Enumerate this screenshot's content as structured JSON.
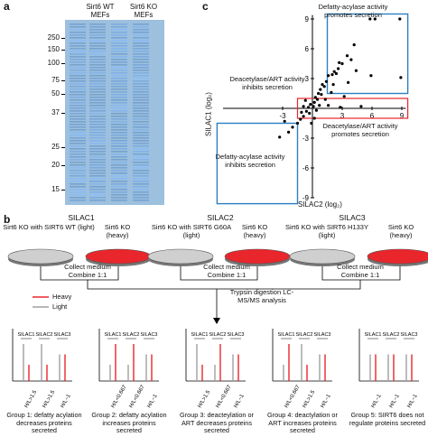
{
  "panel_a": {
    "letter": "a",
    "lane_wt": "Sirt6 WT MEFs",
    "lane_ko": "Sirt6 KO MEFs",
    "markers": [
      "250",
      "150",
      "100",
      "75",
      "50",
      "37",
      "25",
      "20",
      "15"
    ]
  },
  "panel_c": {
    "letter": "c",
    "top_label": "Defatty-acylase activity promotes secretion",
    "left_label": "Deacetylase/ART activity inhibits secretion",
    "right_label": "Deacetylase/ART activity promotes secretion",
    "bottom_label": "Defatty-acylase activity inhibits secretion",
    "ylabel": "SILAC1 (log₂)",
    "xlabel": "SILAC2 (log₂)",
    "yticks": [
      "9",
      "6",
      "3",
      "-3",
      "-6",
      "-9"
    ],
    "xticks": [
      "-3",
      "3",
      "6",
      "9"
    ]
  },
  "chart_data": {
    "type": "scatter",
    "xlabel": "SILAC2 (log₂)",
    "ylabel": "SILAC1 (log₂)",
    "xlim": [
      -9,
      9
    ],
    "ylim": [
      -9,
      9
    ],
    "points": [
      [
        5.8,
        9.0
      ],
      [
        6.3,
        9.0
      ],
      [
        8.8,
        9.0
      ],
      [
        4.2,
        6.4
      ],
      [
        3.5,
        5.3
      ],
      [
        3.9,
        4.9
      ],
      [
        2.7,
        4.6
      ],
      [
        3.0,
        4.5
      ],
      [
        2.6,
        4.0
      ],
      [
        2.2,
        3.7
      ],
      [
        2.0,
        3.4
      ],
      [
        1.6,
        3.3
      ],
      [
        2.4,
        3.5
      ],
      [
        1.4,
        2.7
      ],
      [
        1.0,
        2.4
      ],
      [
        1.2,
        2.2
      ],
      [
        0.8,
        1.9
      ],
      [
        0.6,
        1.5
      ],
      [
        0.9,
        1.4
      ],
      [
        0.3,
        1.1
      ],
      [
        0.5,
        0.9
      ],
      [
        0.2,
        0.6
      ],
      [
        -0.2,
        0.4
      ],
      [
        0.1,
        0.2
      ],
      [
        -0.4,
        0.1
      ],
      [
        0.4,
        -0.2
      ],
      [
        -0.6,
        -0.3
      ],
      [
        -0.3,
        -0.5
      ],
      [
        0.7,
        0.3
      ],
      [
        -0.9,
        -0.8
      ],
      [
        -1.2,
        -1.1
      ],
      [
        -1.5,
        -1.5
      ],
      [
        -2.0,
        -1.9
      ],
      [
        -2.4,
        -2.4
      ],
      [
        -1.1,
        -0.4
      ],
      [
        -0.7,
        0.8
      ],
      [
        1.6,
        0.3
      ],
      [
        2.8,
        0.1
      ],
      [
        5.9,
        3.3
      ],
      [
        8.9,
        3.1
      ],
      [
        4.9,
        0.2
      ],
      [
        3.2,
        1.2
      ],
      [
        1.9,
        1.6
      ],
      [
        -3.3,
        -2.9
      ],
      [
        -2.8,
        -1.3
      ],
      [
        0.2,
        -1.0
      ],
      [
        -0.1,
        -1.5
      ],
      [
        -0.9,
        0.2
      ],
      [
        1.3,
        0.9
      ],
      [
        2.1,
        2.4
      ],
      [
        3.6,
        2.6
      ],
      [
        4.4,
        3.8
      ]
    ]
  },
  "panel_b": {
    "letter": "b",
    "silac1": {
      "title": "SILAC1",
      "light": "Sirt6 KO with SIRT6 WT (light)",
      "heavy": "Sirt6 KO (heavy)"
    },
    "silac2": {
      "title": "SILAC2",
      "light": "Sirt6 KO with SIRT6 G60A (light)",
      "heavy": "Sirt6 KO (heavy)"
    },
    "silac3": {
      "title": "SILAC3",
      "light": "Sirt6 KO with SIRT6 H133Y (light)",
      "heavy": "Sirt6 KO (heavy)"
    },
    "collect": "Collect medium Combine 1:1",
    "trypsin": "Trypsin digestion LC-MS/MS analysis",
    "legend_heavy": "Heavy",
    "legend_light": "Light",
    "col_labels": [
      "SILAC1",
      "SILAC2",
      "SILAC3"
    ],
    "groups": [
      {
        "ratios": [
          "H/L>1.5",
          "H/L>1.5",
          "H/L~1"
        ],
        "caption": "Group 1: defatty acylation decreases proteins secreted"
      },
      {
        "ratios": [
          "H/L<0.667",
          "H/L<0.667",
          "H/L~1"
        ],
        "caption": "Group 2: defatty acylation increases proteins secreted"
      },
      {
        "ratios": [
          "H/L>1.5",
          "H/L<0.667",
          "H/L~1"
        ],
        "caption": "Group 3: deacteylation or ART decreases proteins secreted"
      },
      {
        "ratios": [
          "H/L<0.667",
          "H/L>1.5",
          "H/L~1"
        ],
        "caption": "Group 4: deactylation or ART increases proteins secreted"
      },
      {
        "ratios": [
          "H/L~1",
          "H/L~1",
          "H/L~1"
        ],
        "caption": "Group 5: SIRT6 does not regulate proteins secreted"
      }
    ]
  },
  "colors": {
    "heavy": "#e8262b",
    "light": "#a0a0a0",
    "box": "#2b7fc3",
    "gel": "#9cc0de"
  }
}
